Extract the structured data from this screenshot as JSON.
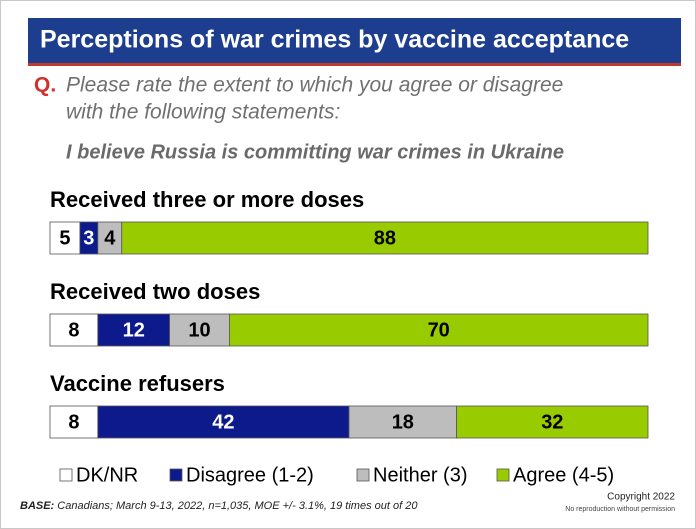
{
  "chart_data": {
    "type": "stacked-bar",
    "title": "Perceptions of war crimes by vaccine acceptance",
    "question_marker": "Q.",
    "question_lines": [
      "Please rate the extent to which you agree or disagree",
      "with the following statements:"
    ],
    "statement": "I believe Russia is committing war crimes in Ukraine",
    "categories": [
      "Received three or more doses",
      "Received two doses",
      "Vaccine refusers"
    ],
    "series": [
      {
        "name": "DK/NR",
        "color": "#ffffff",
        "values": [
          5,
          8,
          8
        ]
      },
      {
        "name": "Disagree (1-2)",
        "color": "#0c1a8c",
        "values": [
          3,
          12,
          42
        ]
      },
      {
        "name": "Neither (3)",
        "color": "#bdbdbd",
        "values": [
          4,
          10,
          18
        ]
      },
      {
        "name": "Agree (4-5)",
        "color": "#99cc00",
        "values": [
          88,
          70,
          32
        ]
      }
    ],
    "base_label": "BASE:",
    "base_text": "Canadians; March 9-13, 2022, n=1,035, MOE +/- 3.1%, 19 times out of 20",
    "copyright": "Copyright 2022",
    "notice": "No reproduction without permission"
  }
}
